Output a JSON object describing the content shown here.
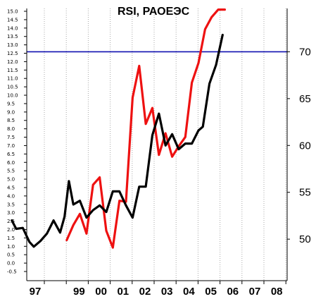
{
  "chart_data": {
    "type": "line",
    "title": "RSI, РАОЕЭС",
    "xlabel": "",
    "ylabel": "",
    "x_tick_labels": [
      "97",
      "",
      "99",
      "00",
      "01",
      "02",
      "03",
      "04",
      "05",
      "06",
      "07",
      "08"
    ],
    "y_left_tick_labels": [
      "15.0",
      "14.5",
      "14.0",
      "13.5",
      "13.0",
      "12.5",
      "12.0",
      "11.5",
      "11.0",
      "10.5",
      "10.0",
      "9.5",
      "9.0",
      "8.5",
      "8.0",
      "7.5",
      "7.0",
      "6.5",
      "6.0",
      "5.5",
      "5.0",
      "4.5",
      "4.0",
      "3.5",
      "3.0",
      "2.5",
      "2.0",
      "1.5",
      "1.0",
      "0.5",
      "0.0",
      "-0.5"
    ],
    "y_left_lim": [
      -0.5,
      15.0
    ],
    "y_right_tick_labels": [
      "70",
      "65",
      "60",
      "55",
      "50"
    ],
    "y_right_lim": [
      47,
      75
    ],
    "reference_line": {
      "y": 70,
      "color": "#1010b0"
    },
    "grid": {
      "vertical": "dotted",
      "horizontal": false
    },
    "series": [
      {
        "color": "#ee1111",
        "x": [
          1.5,
          1.8,
          2.1,
          2.4,
          2.7,
          3.0,
          3.3,
          3.6,
          3.9,
          4.2,
          4.5,
          4.8,
          5.1,
          5.4,
          5.7,
          6.0,
          6.3,
          6.6,
          6.9,
          7.2,
          7.5,
          7.8,
          8.1,
          8.4,
          8.7
        ],
        "y": [
          49.9,
          51.5,
          52.7,
          50.6,
          55.8,
          56.6,
          50.9,
          49.1,
          54.1,
          54.0,
          65.1,
          68.5,
          62.3,
          64.0,
          59.0,
          61.3,
          58.8,
          59.9,
          60.9,
          66.7,
          68.8,
          72.4,
          73.7,
          74.5,
          74.5
        ]
      },
      {
        "color": "#000000",
        "x": [
          -1.0,
          -0.8,
          -0.5,
          -0.2,
          0.0,
          0.3,
          0.6,
          0.9,
          1.2,
          1.4,
          1.6,
          1.8,
          2.1,
          2.4,
          2.7,
          3.0,
          3.3,
          3.6,
          3.9,
          4.2,
          4.5,
          4.8,
          5.1,
          5.4,
          5.7,
          6.0,
          6.3,
          6.6,
          6.9,
          7.2,
          7.5,
          7.7,
          8.0,
          8.3,
          8.6
        ],
        "y": [
          52.0,
          51.1,
          51.2,
          49.7,
          49.2,
          49.8,
          50.6,
          52.0,
          50.7,
          52.4,
          56.2,
          53.7,
          54.1,
          52.3,
          53.1,
          53.6,
          52.9,
          55.1,
          55.1,
          53.6,
          52.3,
          55.6,
          55.6,
          61.1,
          63.4,
          60.0,
          61.2,
          59.6,
          60.2,
          60.2,
          61.6,
          62.0,
          66.6,
          68.6,
          71.8
        ]
      }
    ]
  }
}
